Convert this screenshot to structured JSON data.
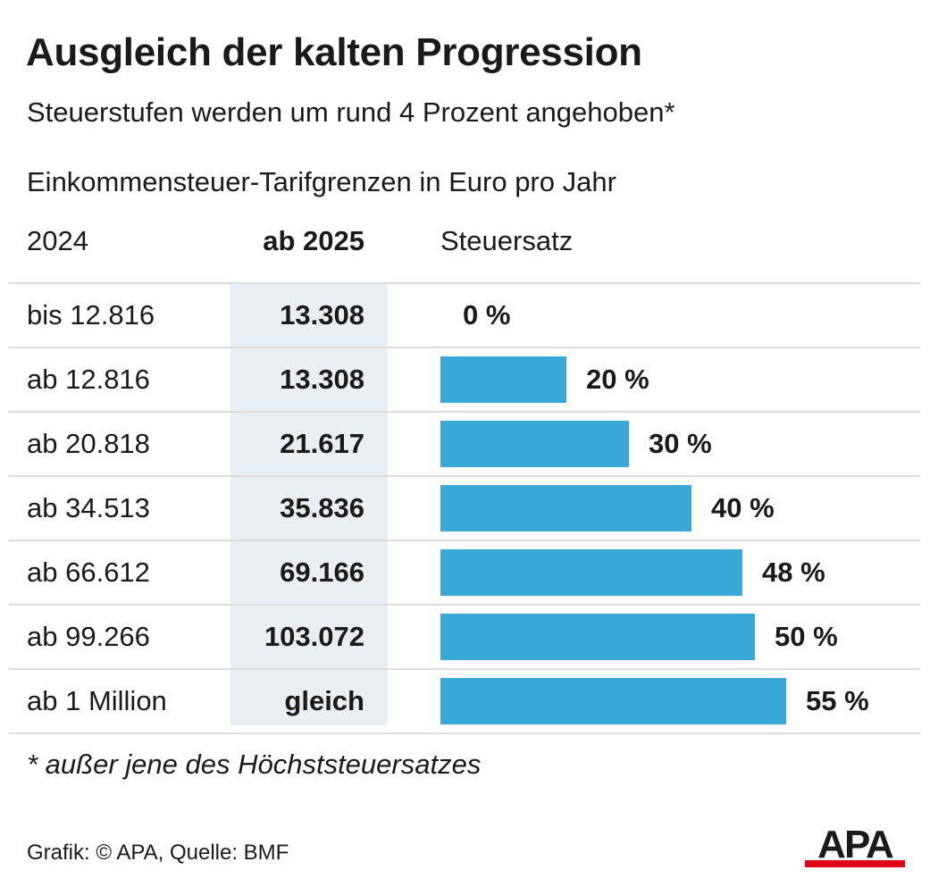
{
  "title": "Ausgleich der kalten Progression",
  "subtitle": "Steuerstufen werden um rund 4 Prozent angehoben*",
  "caption": "Einkommensteuer-Tarifgrenzen in Euro pro Jahr",
  "columns": {
    "col_2024": "2024",
    "col_2025": "ab 2025",
    "col_rate": "Steuersatz"
  },
  "chart_data": {
    "type": "bar",
    "orientation": "horizontal",
    "title": "Ausgleich der kalten Progression",
    "subtitle": "Steuerstufen werden um rund 4 Prozent angehoben*",
    "rows": [
      {
        "limit_2024": "bis 12.816",
        "limit_2025": "13.308",
        "rate": 0,
        "rate_label": "0 %"
      },
      {
        "limit_2024": "ab 12.816",
        "limit_2025": "13.308",
        "rate": 20,
        "rate_label": "20 %"
      },
      {
        "limit_2024": "ab 20.818",
        "limit_2025": "21.617",
        "rate": 30,
        "rate_label": "30 %"
      },
      {
        "limit_2024": "ab 34.513",
        "limit_2025": "35.836",
        "rate": 40,
        "rate_label": "40 %"
      },
      {
        "limit_2024": "ab 66.612",
        "limit_2025": "69.166",
        "rate": 48,
        "rate_label": "48 %"
      },
      {
        "limit_2024": "ab 99.266",
        "limit_2025": "103.072",
        "rate": 50,
        "rate_label": "50 %"
      },
      {
        "limit_2024": "ab 1 Million",
        "limit_2025": "gleich",
        "rate": 55,
        "rate_label": "55 %"
      }
    ],
    "xlim": [
      0,
      55
    ],
    "grid": false,
    "bar_color": "#3aa8d6"
  },
  "footnote": "* außer jene des Höchststeuersatzes",
  "source": "Grafik: © APA, Quelle: BMF",
  "logo": {
    "text": "APA",
    "text_color": "#1a1a1a",
    "stripe_color": "#e2001a"
  }
}
